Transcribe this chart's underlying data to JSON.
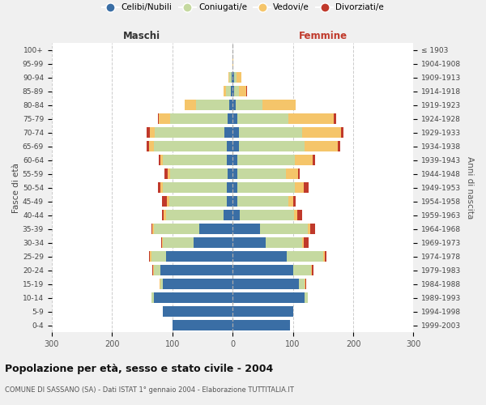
{
  "age_groups": [
    "0-4",
    "5-9",
    "10-14",
    "15-19",
    "20-24",
    "25-29",
    "30-34",
    "35-39",
    "40-44",
    "45-49",
    "50-54",
    "55-59",
    "60-64",
    "65-69",
    "70-74",
    "75-79",
    "80-84",
    "85-89",
    "90-94",
    "95-99",
    "100+"
  ],
  "birth_years": [
    "1999-2003",
    "1994-1998",
    "1989-1993",
    "1984-1988",
    "1979-1983",
    "1974-1978",
    "1969-1973",
    "1964-1968",
    "1959-1963",
    "1954-1958",
    "1949-1953",
    "1944-1948",
    "1939-1943",
    "1934-1938",
    "1929-1933",
    "1924-1928",
    "1919-1923",
    "1914-1918",
    "1909-1913",
    "1904-1908",
    "≤ 1903"
  ],
  "maschi_celibi": [
    100,
    115,
    130,
    115,
    120,
    110,
    65,
    55,
    15,
    10,
    10,
    8,
    10,
    10,
    14,
    8,
    5,
    3,
    2,
    0,
    0
  ],
  "maschi_coniugati": [
    0,
    0,
    5,
    5,
    10,
    25,
    50,
    75,
    95,
    95,
    105,
    95,
    105,
    120,
    115,
    95,
    55,
    8,
    3,
    0,
    0
  ],
  "maschi_vedovi": [
    0,
    0,
    0,
    1,
    2,
    2,
    2,
    3,
    4,
    4,
    5,
    5,
    5,
    8,
    8,
    20,
    20,
    4,
    2,
    0,
    0
  ],
  "maschi_divorziati": [
    0,
    0,
    0,
    0,
    1,
    1,
    1,
    2,
    3,
    8,
    4,
    5,
    3,
    4,
    5,
    1,
    0,
    0,
    0,
    0,
    0
  ],
  "femmine_nubili": [
    95,
    100,
    120,
    110,
    100,
    90,
    55,
    45,
    12,
    8,
    8,
    8,
    8,
    10,
    10,
    8,
    5,
    3,
    2,
    0,
    0
  ],
  "femmine_coniugate": [
    0,
    0,
    5,
    10,
    30,
    60,
    60,
    80,
    90,
    85,
    95,
    80,
    95,
    110,
    105,
    85,
    45,
    8,
    4,
    0,
    0
  ],
  "femmine_vedove": [
    0,
    0,
    0,
    1,
    2,
    3,
    3,
    4,
    5,
    8,
    15,
    20,
    30,
    55,
    65,
    75,
    55,
    12,
    8,
    1,
    0
  ],
  "femmine_divorziate": [
    0,
    0,
    0,
    1,
    2,
    3,
    8,
    8,
    8,
    4,
    8,
    4,
    4,
    4,
    4,
    4,
    0,
    1,
    0,
    0,
    0
  ],
  "color_celibi": "#3a6ea5",
  "color_coniugati": "#c5d9a0",
  "color_vedovi": "#f5c56a",
  "color_divorziati": "#c0392b",
  "legend_labels": [
    "Celibi/Nubili",
    "Coniugati/e",
    "Vedovi/e",
    "Divorziati/e"
  ],
  "title": "Popolazione per età, sesso e stato civile - 2004",
  "subtitle": "COMUNE DI SASSANO (SA) - Dati ISTAT 1° gennaio 2004 - Elaborazione TUTTITALIA.IT",
  "ylabel_left": "Fasce di età",
  "ylabel_right": "Anni di nascita",
  "label_maschi": "Maschi",
  "label_femmine": "Femmine",
  "xlim": 300,
  "bg_color": "#f0f0f0",
  "plot_bg": "#ffffff"
}
